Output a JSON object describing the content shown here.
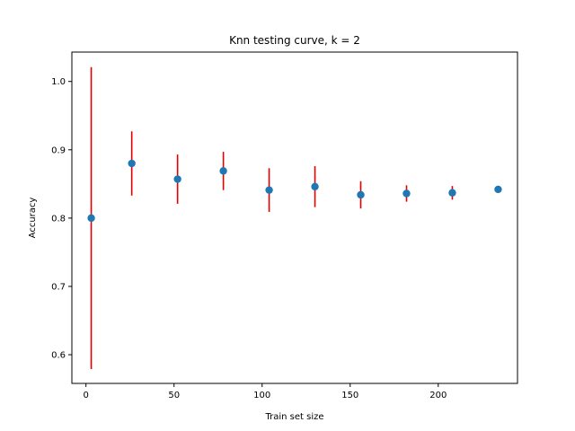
{
  "chart_data": {
    "type": "scatter",
    "title": "Knn testing curve, k = 2",
    "xlabel": "Train set size",
    "ylabel": "Accuracy",
    "xlim": [
      -8,
      245
    ],
    "ylim": [
      0.558,
      1.043
    ],
    "xticks": [
      0,
      50,
      100,
      150,
      200
    ],
    "yticks": [
      0.6,
      0.7,
      0.8,
      0.9,
      1.0
    ],
    "xtick_labels": [
      "0",
      "50",
      "100",
      "150",
      "200"
    ],
    "ytick_labels": [
      "0.6",
      "0.7",
      "0.8",
      "0.9",
      "1.0"
    ],
    "grid": false,
    "series": [
      {
        "x": [
          3,
          26,
          52,
          78,
          104,
          130,
          156,
          182,
          208,
          234
        ],
        "y": [
          0.8,
          0.88,
          0.857,
          0.869,
          0.841,
          0.846,
          0.834,
          0.836,
          0.837,
          0.842
        ],
        "yerr": [
          0.221,
          0.047,
          0.036,
          0.028,
          0.032,
          0.03,
          0.02,
          0.012,
          0.01,
          0.0
        ],
        "marker_color": "#1f77b4",
        "errorbar_color": "#e00000"
      }
    ]
  }
}
